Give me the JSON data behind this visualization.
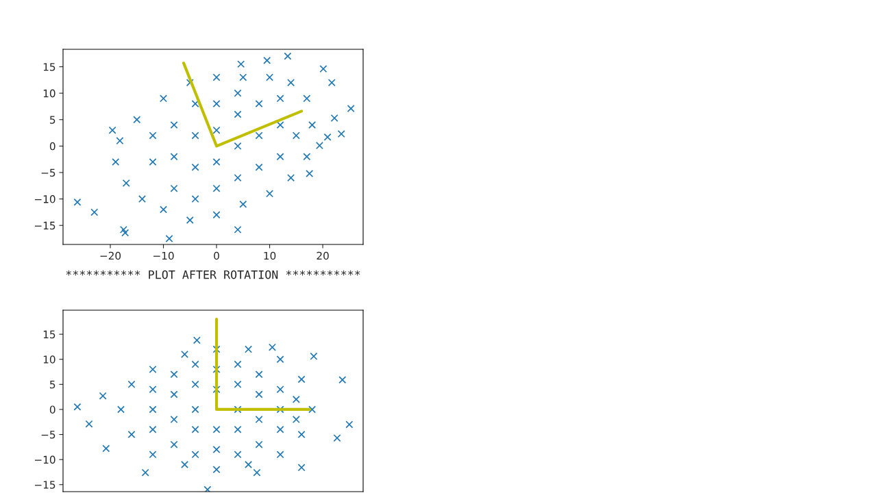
{
  "chart_data": [
    {
      "type": "scatter",
      "grid": false,
      "xlim": [
        -28.9,
        27.6
      ],
      "ylim": [
        -18.6,
        18.3
      ],
      "xticks": [
        {
          "value": -20,
          "label": "−20"
        },
        {
          "value": -10,
          "label": "−10"
        },
        0,
        10,
        20
      ],
      "yticks": [
        {
          "value": -15,
          "label": "−15"
        },
        {
          "value": -10,
          "label": "−10"
        },
        {
          "value": -5,
          "label": "−5"
        },
        0,
        5,
        10,
        15
      ],
      "series": [
        {
          "marker": "cross",
          "color": "#1f77b4",
          "x": [
            -26.2,
            -23,
            -17.5,
            -17.2,
            -8.9,
            4,
            20.1,
            21.7,
            25.3,
            23.5,
            19.4,
            17.5,
            13.4,
            9.5,
            4.6,
            -19.6,
            -18.2,
            20.9,
            22.2,
            -19,
            -15,
            -10,
            -5,
            0,
            5,
            10,
            14,
            17,
            18,
            17,
            14,
            10,
            5,
            0,
            -5,
            -10,
            -14,
            -17,
            -12,
            -12,
            -8,
            -8,
            -8,
            -4,
            -4,
            -4,
            -4,
            0,
            0,
            0,
            0,
            4,
            4,
            4,
            4,
            8,
            8,
            8,
            12,
            12,
            12,
            15
          ],
          "values": [
            -10.6,
            -12.5,
            -15.8,
            -16.4,
            -17.5,
            -15.8,
            14.6,
            12,
            7.1,
            2.3,
            0.1,
            -5.2,
            17,
            16.2,
            15.5,
            3,
            1,
            1.7,
            5.3,
            -3,
            5,
            9,
            12,
            13,
            13,
            13,
            12,
            9,
            4,
            -2,
            -6,
            -9,
            -11,
            -13,
            -14,
            -12,
            -10,
            -7,
            -3,
            2,
            -8,
            -2,
            4,
            -10,
            -4,
            2,
            8,
            -8,
            -3,
            3,
            8,
            -6,
            0,
            6,
            10,
            -4,
            2,
            8,
            -2,
            4,
            9,
            2
          ]
        },
        {
          "type": "line",
          "color": "#bfbf00",
          "x": [
            -6.2,
            0,
            16
          ],
          "values": [
            15.7,
            0,
            6.6
          ]
        }
      ]
    },
    {
      "type": "scatter",
      "grid": false,
      "title": "*********** PLOT AFTER ROTATION ***********",
      "tick_labels": "y",
      "xlim": [
        -28.9,
        27.6
      ],
      "ylim": [
        -16.4,
        19.8
      ],
      "yticks": [
        {
          "value": -15,
          "label": "−15"
        },
        {
          "value": -10,
          "label": "−10"
        },
        {
          "value": -5,
          "label": "−5"
        },
        0,
        5,
        10,
        15
      ],
      "series": [
        {
          "marker": "cross",
          "color": "#1f77b4",
          "x": [
            -26.2,
            -24,
            -20.8,
            -13.4,
            -1.7,
            23.7,
            25,
            22.7,
            18.3,
            10.5,
            -3.7,
            -21.4,
            16,
            7.6,
            -18,
            -16,
            -12,
            -6,
            0,
            6,
            12,
            16,
            18,
            16,
            12,
            6,
            0,
            -6,
            -12,
            -16,
            -12,
            -12,
            -12,
            -8,
            -8,
            -8,
            -8,
            -4,
            -4,
            -4,
            -4,
            -4,
            0,
            0,
            0,
            0,
            4,
            4,
            4,
            4,
            4,
            8,
            8,
            8,
            8,
            12,
            12,
            12,
            15,
            15
          ],
          "values": [
            0.5,
            -2.9,
            -7.8,
            -12.6,
            -16,
            5.9,
            -3,
            -5.7,
            10.6,
            12.4,
            13.8,
            2.7,
            -11.6,
            -12.6,
            0,
            5,
            8,
            11,
            12,
            12,
            10,
            6,
            0,
            -5,
            -9,
            -11,
            -12,
            -11,
            -9,
            -5,
            -4,
            0,
            4,
            -7,
            -2,
            3,
            7,
            -9,
            -4,
            0,
            5,
            9,
            -8,
            -4,
            4,
            8,
            -9,
            -4,
            0,
            5,
            9,
            -7,
            -2,
            3,
            7,
            -4,
            0,
            4,
            -2,
            2
          ]
        },
        {
          "type": "line",
          "color": "#bfbf00",
          "x": [
            0,
            0,
            17.5
          ],
          "values": [
            18,
            0,
            0
          ]
        }
      ]
    }
  ]
}
